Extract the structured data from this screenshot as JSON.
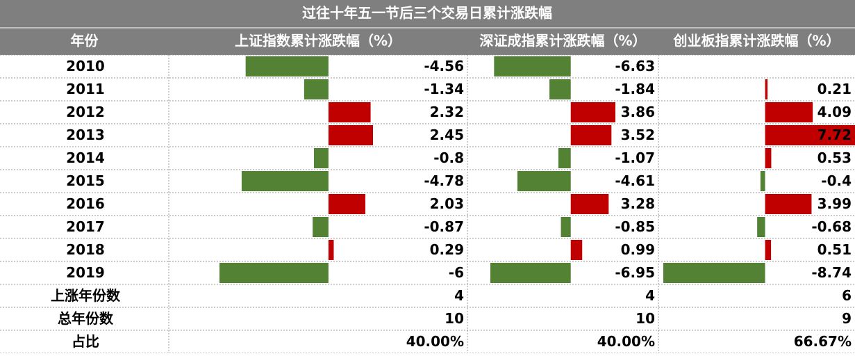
{
  "title": "过往十年五一节后三个交易日累计涨跌幅",
  "table": {
    "header": [
      "年份",
      "上证指数累计涨跌幅（%）",
      "深证成指累计涨跌幅（%）",
      "创业板指累计涨跌幅（%）"
    ],
    "rows": [
      [
        "2010",
        -4.56,
        -6.63,
        null
      ],
      [
        "2011",
        -1.34,
        -1.84,
        0.21
      ],
      [
        "2012",
        2.32,
        3.86,
        4.09
      ],
      [
        "2013",
        2.45,
        3.52,
        7.72
      ],
      [
        "2014",
        -0.8,
        -1.07,
        0.53
      ],
      [
        "2015",
        -4.78,
        -4.61,
        -0.4
      ],
      [
        "2016",
        2.03,
        3.28,
        3.99
      ],
      [
        "2017",
        -0.87,
        -0.85,
        -0.68
      ],
      [
        "2018",
        0.29,
        0.99,
        0.51
      ],
      [
        "2019",
        -6,
        -6.95,
        -8.74
      ]
    ],
    "summary": [
      [
        "上涨年份数",
        4,
        4,
        6
      ],
      [
        "总年份数",
        10,
        10,
        9
      ],
      [
        "占比",
        "40.00%",
        "40.00%",
        "66.67%"
      ]
    ],
    "up_color": "#c00000",
    "down_color": "#548235"
  }
}
